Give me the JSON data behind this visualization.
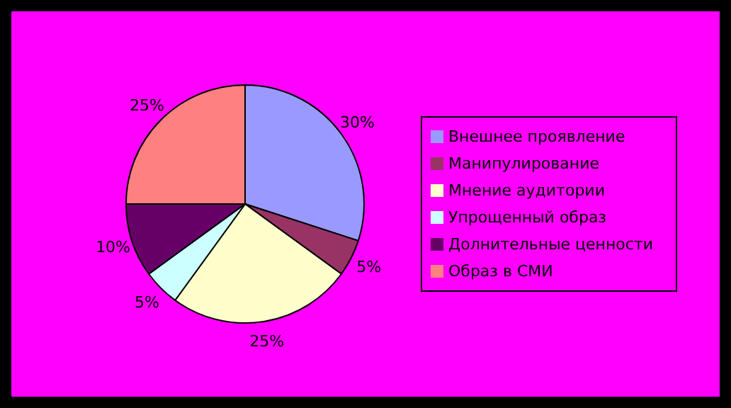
{
  "chart_data": {
    "type": "pie",
    "categories": [
      "Внешнее проявление",
      "Манипулирование",
      "Мнение аудитории",
      "Упрощенный образ",
      "Долнительные ценности",
      "Образ в СМИ"
    ],
    "values": [
      30,
      5,
      25,
      5,
      10,
      25
    ],
    "colors": [
      "#9999ff",
      "#993366",
      "#ffffcc",
      "#ccffff",
      "#660066",
      "#ff8080"
    ],
    "value_labels": [
      "30%",
      "5%",
      "25%",
      "5%",
      "10%",
      "25%"
    ],
    "legend": "right"
  }
}
